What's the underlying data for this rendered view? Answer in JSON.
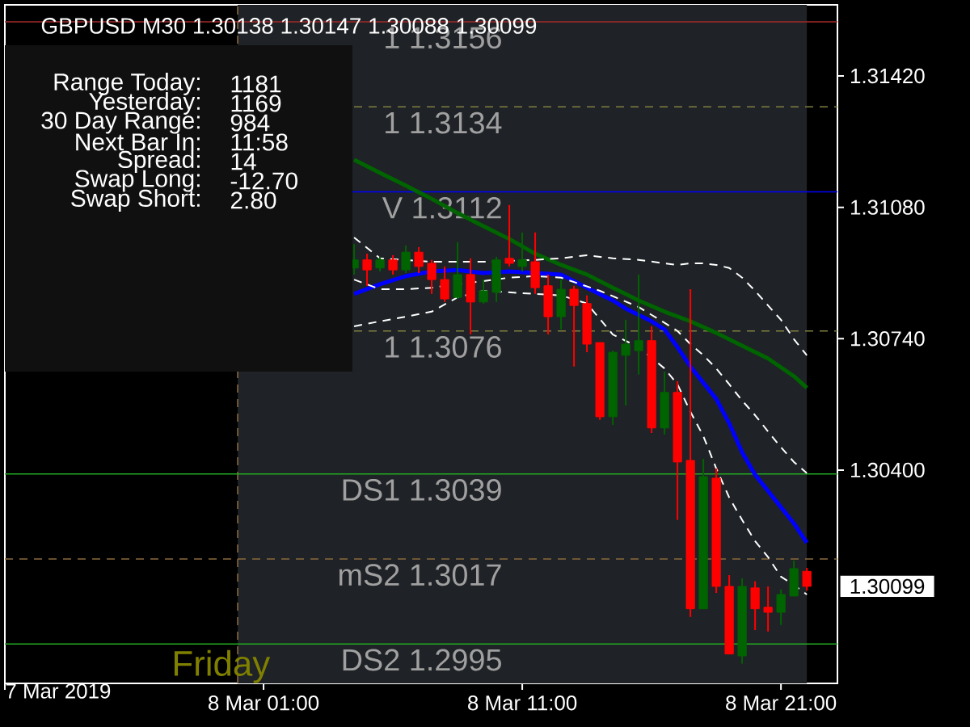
{
  "chart_data": {
    "type": "candlestick",
    "title": "GBPUSD M30  1.30138 1.30147 1.30088 1.30099",
    "x": [
      "2019-03-08T04:30",
      "2019-03-08T05:00",
      "2019-03-08T05:30",
      "2019-03-08T06:00",
      "2019-03-08T06:30",
      "2019-03-08T07:00",
      "2019-03-08T07:30",
      "2019-03-08T08:00",
      "2019-03-08T08:30",
      "2019-03-08T09:00",
      "2019-03-08T09:30",
      "2019-03-08T10:00",
      "2019-03-08T10:30",
      "2019-03-08T11:00",
      "2019-03-08T11:30",
      "2019-03-08T12:00",
      "2019-03-08T12:30",
      "2019-03-08T13:00",
      "2019-03-08T13:30",
      "2019-03-08T14:00",
      "2019-03-08T14:30",
      "2019-03-08T15:00",
      "2019-03-08T15:30",
      "2019-03-08T16:00",
      "2019-03-08T16:30",
      "2019-03-08T17:00",
      "2019-03-08T17:30",
      "2019-03-08T18:00",
      "2019-03-08T18:30",
      "2019-03-08T19:00",
      "2019-03-08T19:30",
      "2019-03-08T20:00",
      "2019-03-08T20:30",
      "2019-03-08T21:00",
      "2019-03-08T21:30",
      "2019-03-08T22:00"
    ],
    "ohlc": [
      [
        1.30923,
        1.30985,
        1.30906,
        1.30944
      ],
      [
        1.30944,
        1.3096,
        1.30877,
        1.30918
      ],
      [
        1.30923,
        1.30952,
        1.30914,
        1.30944
      ],
      [
        1.30944,
        1.30956,
        1.30906,
        1.30918
      ],
      [
        1.30918,
        1.30981,
        1.3091,
        1.30964
      ],
      [
        1.30964,
        1.30977,
        1.3091,
        1.30927
      ],
      [
        1.30935,
        1.30944,
        1.30856,
        1.30893
      ],
      [
        1.30893,
        1.30927,
        1.30835,
        1.30843
      ],
      [
        1.30847,
        1.3099,
        1.30843,
        1.30906
      ],
      [
        1.30906,
        1.30948,
        1.30751,
        1.30835
      ],
      [
        1.30835,
        1.30893,
        1.30831,
        1.30864
      ],
      [
        1.3086,
        1.30952,
        1.30835,
        1.30944
      ],
      [
        1.30948,
        1.31086,
        1.30927,
        1.30935
      ],
      [
        1.30927,
        1.31015,
        1.30914,
        1.30944
      ],
      [
        1.30939,
        1.31015,
        1.30856,
        1.30872
      ],
      [
        1.30877,
        1.30906,
        1.30751,
        1.30797
      ],
      [
        1.30797,
        1.30893,
        1.30764,
        1.30868
      ],
      [
        1.30868,
        1.30877,
        1.30668,
        1.30826
      ],
      [
        1.30831,
        1.30852,
        1.30705,
        1.30726
      ],
      [
        1.3073,
        1.3073,
        1.3053,
        1.30538
      ],
      [
        1.30538,
        1.30709,
        1.30517,
        1.30705
      ],
      [
        1.30697,
        1.30789,
        1.30567,
        1.30726
      ],
      [
        1.30709,
        1.30906,
        1.30647,
        1.30735
      ],
      [
        1.30735,
        1.30772,
        1.30496,
        1.30509
      ],
      [
        1.30509,
        1.30655,
        1.30492,
        1.30601
      ],
      [
        1.30601,
        1.3063,
        1.30271,
        1.30421
      ],
      [
        1.30425,
        1.30868,
        1.3002,
        1.30041
      ],
      [
        1.30041,
        1.30429,
        1.30041,
        1.30383
      ],
      [
        1.30379,
        1.30404,
        1.30082,
        1.30099
      ],
      [
        1.30099,
        1.30128,
        1.29924,
        1.29924
      ],
      [
        1.29919,
        1.3012,
        1.29899,
        1.30099
      ],
      [
        1.30095,
        1.30112,
        1.29986,
        1.30041
      ],
      [
        1.30045,
        1.30099,
        1.29982,
        1.30032
      ],
      [
        1.30032,
        1.30091,
        1.29999,
        1.30078
      ],
      [
        1.30074,
        1.30166,
        1.30074,
        1.30145
      ],
      [
        1.30138,
        1.30147,
        1.30088,
        1.30099
      ]
    ],
    "colors": [
      "#006400",
      "#ff0000",
      "#006400",
      "#ff0000",
      "#006400",
      "#ff0000",
      "#ff0000",
      "#ff0000",
      "#006400",
      "#ff0000",
      "#006400",
      "#006400",
      "#ff0000",
      "#006400",
      "#ff0000",
      "#ff0000",
      "#006400",
      "#ff0000",
      "#ff0000",
      "#ff0000",
      "#006400",
      "#006400",
      "#006400",
      "#ff0000",
      "#006400",
      "#ff0000",
      "#ff0000",
      "#006400",
      "#ff0000",
      "#ff0000",
      "#006400",
      "#ff0000",
      "#ff0000",
      "#006400",
      "#006400",
      "#ff0000"
    ],
    "series": [
      {
        "type": "line",
        "color": "#0000ff",
        "x": [
          "2019-03-08T04:30",
          "2019-03-08T05:30",
          "2019-03-08T06:30",
          "2019-03-08T07:30",
          "2019-03-08T08:30",
          "2019-03-08T09:30",
          "2019-03-08T10:30",
          "2019-03-08T11:30",
          "2019-03-08T12:30",
          "2019-03-08T13:30",
          "2019-03-08T14:30",
          "2019-03-08T15:00",
          "2019-03-08T16:00",
          "2019-03-08T16:30",
          "2019-03-08T17:00",
          "2019-03-08T17:30",
          "2019-03-08T18:00",
          "2019-03-08T18:30",
          "2019-03-08T19:00",
          "2019-03-08T19:30",
          "2019-03-08T20:00",
          "2019-03-08T20:30",
          "2019-03-08T21:00",
          "2019-03-08T21:30",
          "2019-03-08T22:00"
        ],
        "values": [
          1.30856,
          1.30881,
          1.30902,
          1.30914,
          1.30918,
          1.3091,
          1.30914,
          1.3091,
          1.30906,
          1.30872,
          1.30839,
          1.30818,
          1.30785,
          1.30764,
          1.30718,
          1.30668,
          1.30626,
          1.30584,
          1.30521,
          1.30446,
          1.30388,
          1.30346,
          1.30304,
          1.30262,
          1.30212
        ]
      },
      {
        "type": "line",
        "color": "#006400",
        "x": [
          "2019-03-08T04:30",
          "2019-03-08T05:30",
          "2019-03-08T06:30",
          "2019-03-08T07:30",
          "2019-03-08T08:30",
          "2019-03-08T09:30",
          "2019-03-08T10:30",
          "2019-03-08T11:30",
          "2019-03-08T12:30",
          "2019-03-08T13:30",
          "2019-03-08T14:30",
          "2019-03-08T15:30",
          "2019-03-08T16:30",
          "2019-03-08T17:30",
          "2019-03-08T18:30",
          "2019-03-08T19:30",
          "2019-03-08T20:30",
          "2019-03-08T21:30",
          "2019-03-08T22:00"
        ],
        "values": [
          1.31203,
          1.31169,
          1.31136,
          1.31102,
          1.31065,
          1.31031,
          1.30998,
          1.3096,
          1.30931,
          1.30906,
          1.30872,
          1.30839,
          1.3081,
          1.30785,
          1.30755,
          1.30722,
          1.30689,
          1.30643,
          1.30613
        ]
      },
      {
        "type": "line",
        "color": "#ffffff",
        "line_style": "dashed",
        "x": [
          "2019-03-08T04:30",
          "2019-03-08T05:30",
          "2019-03-08T07:30",
          "2019-03-08T09:30",
          "2019-03-08T11:30",
          "2019-03-08T12:30",
          "2019-03-08T13:30",
          "2019-03-08T14:30",
          "2019-03-08T15:30",
          "2019-03-08T16:30",
          "2019-03-08T17:00",
          "2019-03-08T17:30",
          "2019-03-08T18:00",
          "2019-03-08T18:30",
          "2019-03-08T19:00",
          "2019-03-08T19:30",
          "2019-03-08T20:00",
          "2019-03-08T20:30",
          "2019-03-08T21:00",
          "2019-03-08T21:30",
          "2019-03-08T22:00"
        ],
        "values": [
          1.31002,
          1.30948,
          1.30939,
          1.30939,
          1.30944,
          1.30948,
          1.30956,
          1.30948,
          1.30944,
          1.30935,
          1.30931,
          1.30935,
          1.30935,
          1.30931,
          1.30923,
          1.30898,
          1.30864,
          1.30826,
          1.30789,
          1.30739,
          1.30697
        ]
      },
      {
        "type": "line",
        "color": "#ffffff",
        "line_style": "dashed",
        "x": [
          "2019-03-08T04:30",
          "2019-03-08T05:30",
          "2019-03-08T06:30",
          "2019-03-08T07:30",
          "2019-03-08T08:30",
          "2019-03-08T09:30",
          "2019-03-08T10:30",
          "2019-03-08T11:30",
          "2019-03-08T12:30",
          "2019-03-08T14:00",
          "2019-03-08T15:30",
          "2019-03-08T16:30",
          "2019-03-08T17:00",
          "2019-03-08T17:30",
          "2019-03-08T18:00",
          "2019-03-08T18:30",
          "2019-03-08T19:00",
          "2019-03-08T19:30",
          "2019-03-08T20:00",
          "2019-03-08T20:30",
          "2019-03-08T21:00",
          "2019-03-08T21:30",
          "2019-03-08T22:00"
        ],
        "values": [
          1.30893,
          1.30868,
          1.30868,
          1.30872,
          1.30881,
          1.30889,
          1.30898,
          1.30902,
          1.30898,
          1.30864,
          1.30822,
          1.30781,
          1.3076,
          1.30726,
          1.30697,
          1.30663,
          1.30622,
          1.3058,
          1.30542,
          1.305,
          1.30459,
          1.30421,
          1.30392
        ]
      },
      {
        "type": "line",
        "color": "#ffffff",
        "line_style": "dashed",
        "x": [
          "2019-03-08T04:30",
          "2019-03-08T05:30",
          "2019-03-08T06:30",
          "2019-03-08T07:30",
          "2019-03-08T08:30",
          "2019-03-08T09:30",
          "2019-03-08T10:30",
          "2019-03-08T11:30",
          "2019-03-08T12:30",
          "2019-03-08T13:30",
          "2019-03-08T14:30",
          "2019-03-08T15:30",
          "2019-03-08T16:30",
          "2019-03-08T17:00",
          "2019-03-08T17:30",
          "2019-03-08T18:00",
          "2019-03-08T18:30",
          "2019-03-08T19:00",
          "2019-03-08T19:30",
          "2019-03-08T20:00",
          "2019-03-08T20:30",
          "2019-03-08T21:00",
          "2019-03-08T21:30",
          "2019-03-08T22:00"
        ],
        "values": [
          1.30772,
          1.30785,
          1.30797,
          1.3081,
          1.30847,
          1.30864,
          1.3086,
          1.30856,
          1.30852,
          1.30831,
          1.30751,
          1.30718,
          1.30663,
          1.30622,
          1.30551,
          1.30488,
          1.30404,
          1.30329,
          1.30271,
          1.30216,
          1.30175,
          1.30124,
          1.30103,
          1.30078
        ]
      }
    ],
    "xlim": [
      "2019-03-07T15:00",
      "2019-03-08T23:11"
    ],
    "xticks": [
      {
        "value": "2019-03-07T15:00",
        "label": null
      },
      {
        "value": "2019-03-08T01:00",
        "label": "8 Mar 01:00"
      },
      {
        "value": "2019-03-08T11:00",
        "label": "8 Mar 11:00"
      },
      {
        "value": "2019-03-08T21:00",
        "label": "8 Mar 21:00"
      }
    ],
    "ylim": [
      1.29848,
      1.31604
    ],
    "yticks": [
      {
        "value": 1.3142,
        "label": "1.31420"
      },
      {
        "value": 1.3108,
        "label": "1.31080"
      },
      {
        "value": 1.3074,
        "label": "1.30740"
      },
      {
        "value": 1.304,
        "label": "1.30400"
      }
    ],
    "bands": [
      {
        "axis": "x",
        "from": "2019-03-08T00:00",
        "to": "2019-03-08T22:00",
        "color": "#1f2226"
      }
    ],
    "ref_lines": [
      {
        "axis": "x",
        "value": "2019-03-08T00:00",
        "color": "#8b6b3d",
        "line_style": "dashed"
      },
      {
        "axis": "y",
        "value": 1.3156,
        "label": "1 1.3156",
        "color": "#a52a2a",
        "line_style": "solid"
      },
      {
        "axis": "y",
        "value": 1.3134,
        "label": "1 1.3134",
        "color": "#808040",
        "line_style": "dashed"
      },
      {
        "axis": "y",
        "value": 1.3112,
        "label": "V 1.3112",
        "color": "#0000ff",
        "line_style": "solid"
      },
      {
        "axis": "y",
        "value": 1.3076,
        "label": "1 1.3076",
        "color": "#808040",
        "line_style": "dashed"
      },
      {
        "axis": "y",
        "value": 1.3039,
        "label": "DS1 1.3039",
        "color": "#22aa22",
        "line_style": "solid"
      },
      {
        "axis": "y",
        "value": 1.3017,
        "label": "mS2 1.3017",
        "color": "#8b6b3d",
        "line_style": "dashed"
      },
      {
        "axis": "y",
        "value": 1.2995,
        "label": "DS2 1.2995",
        "color": "#22aa22",
        "line_style": "solid"
      }
    ],
    "annotations": [
      "Range  Today:",
      "1181",
      "Yesterday:",
      "1169",
      "30 Day Range:",
      "984",
      "Next Bar In:",
      "11:58",
      "Spread:",
      "14",
      "Swap  Long:",
      "-12.70",
      "Swap  Short:",
      "2.80",
      "Friday",
      "1.30099",
      "7 Mar 2019"
    ]
  }
}
